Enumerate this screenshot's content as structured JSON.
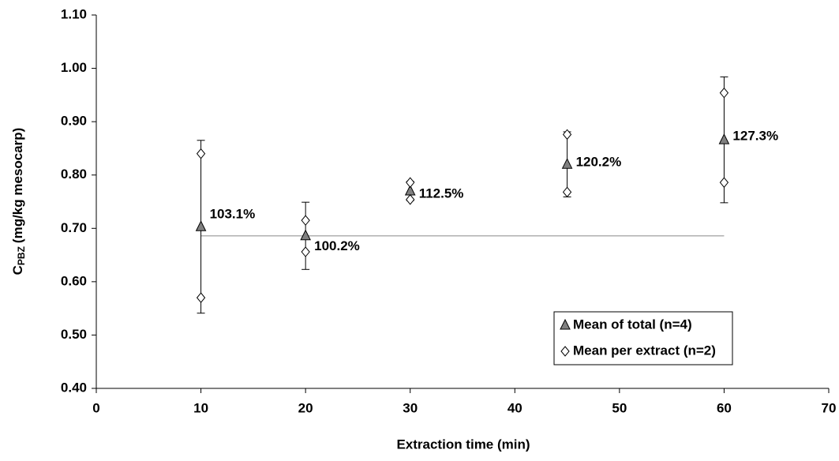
{
  "chart_data": {
    "type": "scatter",
    "xlabel": "Extraction time (min)",
    "ylabel": "C",
    "ylabel_sub": "PBZ",
    "ylabel_rest": "(mg/kg mesocarp)",
    "xlim": [
      0,
      70
    ],
    "xticks": [
      0,
      10,
      20,
      30,
      40,
      50,
      60,
      70
    ],
    "ylim": [
      0.4,
      1.1
    ],
    "yticks": [
      {
        "value": 0.4,
        "label": "0.40"
      },
      {
        "value": 0.5,
        "label": "0.50"
      },
      {
        "value": 0.6,
        "label": "0.60"
      },
      {
        "value": 0.7,
        "label": "0.70"
      },
      {
        "value": 0.8,
        "label": "0.80"
      },
      {
        "value": 0.9,
        "label": "0.90"
      },
      {
        "value": 1.0,
        "label": "1.00"
      },
      {
        "value": 1.1,
        "label": "1.10"
      }
    ],
    "series": [
      {
        "name": "Mean of total (n=4)",
        "marker": "triangle",
        "color": "#808080",
        "x": [
          10,
          20,
          30,
          45,
          60
        ],
        "values": [
          0.703,
          0.686,
          0.77,
          0.82,
          0.866
        ],
        "errors": [
          0.162,
          0.063,
          0.018,
          0.061,
          0.118
        ],
        "annotations": [
          "103.1%",
          "100.2%",
          "112.5%",
          "120.2%",
          "127.3%"
        ]
      },
      {
        "name": "Mean per extract (n=2)",
        "marker": "diamond",
        "color": "#ffffff",
        "x": [
          10,
          10,
          20,
          20,
          30,
          30,
          45,
          45,
          60,
          60
        ],
        "values": [
          0.84,
          0.57,
          0.715,
          0.656,
          0.786,
          0.754,
          0.876,
          0.768,
          0.954,
          0.786
        ]
      }
    ],
    "reference_line": {
      "value": 0.686,
      "x": [
        10,
        60
      ],
      "color": "#b0b0b0"
    },
    "legend": "lower right"
  }
}
